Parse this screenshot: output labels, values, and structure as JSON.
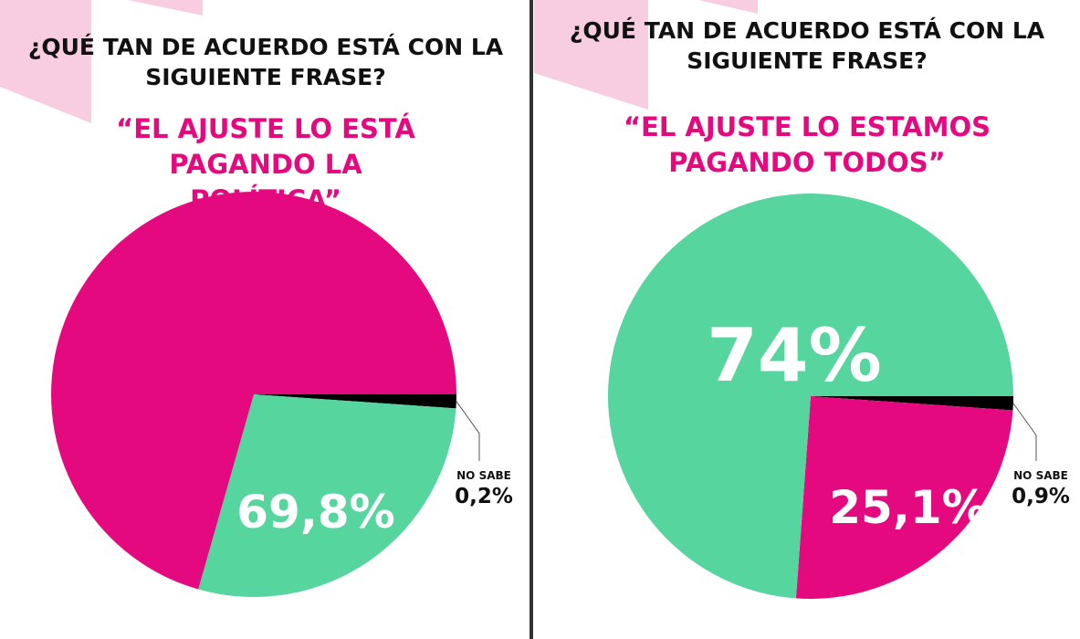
{
  "colors": {
    "pink": "#e5097f",
    "green": "#57d59e",
    "black": "#000000",
    "decor": "#f8cde0",
    "divider": "#333333"
  },
  "chart_data": [
    {
      "type": "pie",
      "question": "¿QUÉ TAN DE ACUERDO ESTÁ CON LA SIGUIENTE FRASE?",
      "title": "“EL AJUSTE LO ESTÁ PAGANDO LA POLÍTICA”",
      "slices": [
        {
          "label": "NO SABE",
          "value": 0.2,
          "display": "0,2%",
          "color": "#000000"
        },
        {
          "label": "",
          "value": 28,
          "display": "28%",
          "color": "#57d59e"
        },
        {
          "label": "",
          "value": 69.8,
          "display": "69,8%",
          "color": "#e5097f"
        }
      ]
    },
    {
      "type": "pie",
      "question": "¿QUÉ TAN DE ACUERDO ESTÁ CON LA SIGUIENTE FRASE?",
      "title": "“EL AJUSTE LO ESTAMOS PAGANDO TODOS”",
      "slices": [
        {
          "label": "NO SABE",
          "value": 0.9,
          "display": "0,9%",
          "color": "#000000"
        },
        {
          "label": "",
          "value": 25.1,
          "display": "25,1%",
          "color": "#e5097f"
        },
        {
          "label": "",
          "value": 74,
          "display": "74%",
          "color": "#57d59e"
        }
      ]
    }
  ]
}
